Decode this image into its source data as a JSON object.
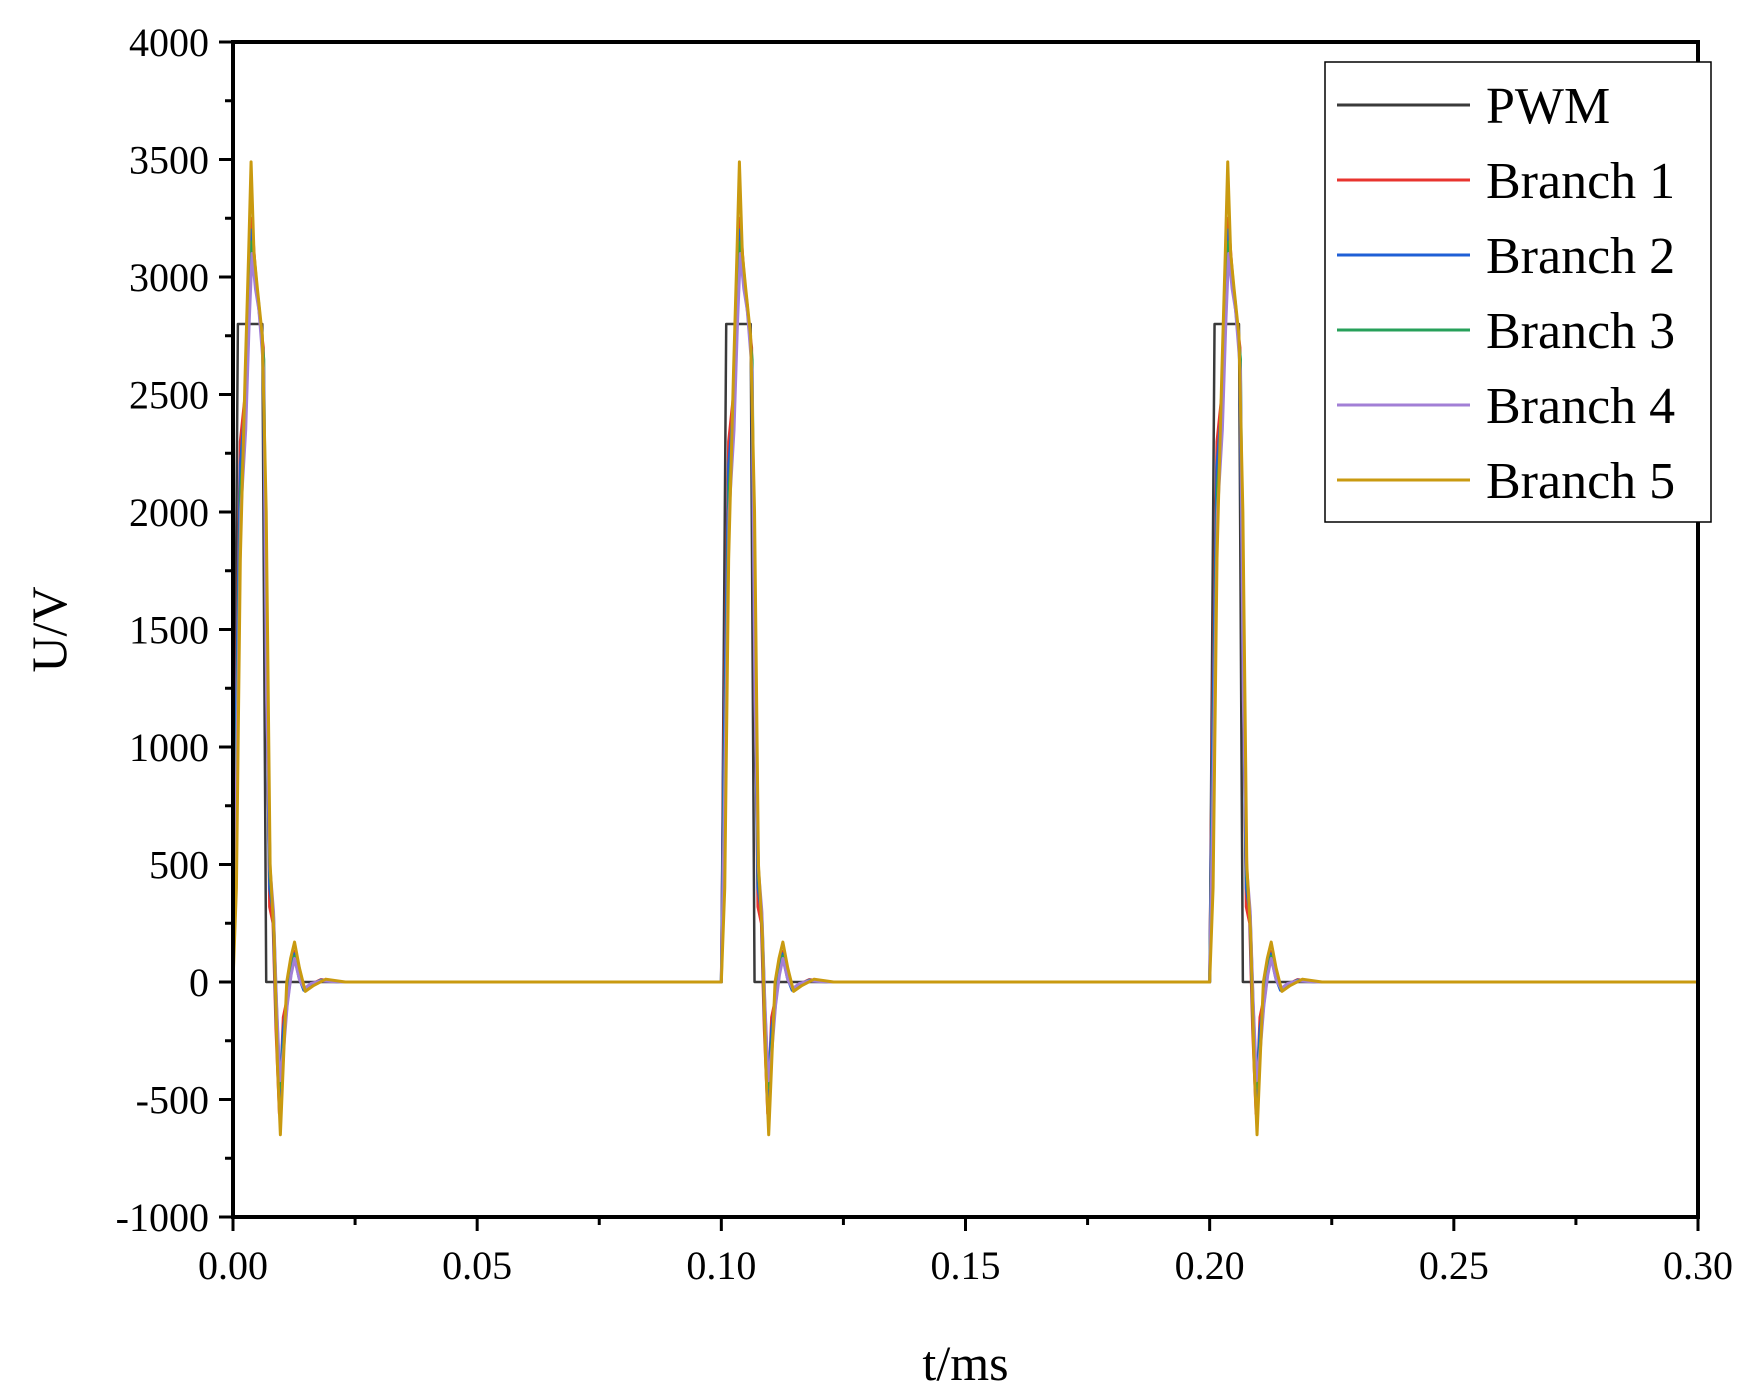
{
  "chart_data": {
    "type": "line",
    "title": "",
    "xlabel": "t/ms",
    "ylabel": "U/V",
    "xlim": [
      0,
      0.3
    ],
    "ylim": [
      -1000,
      4000
    ],
    "xticks": [
      0,
      0.05,
      0.1,
      0.15,
      0.2,
      0.25,
      0.3
    ],
    "xtick_labels": [
      "0.00",
      "0.05",
      "0.10",
      "0.15",
      "0.20",
      "0.25",
      "0.30"
    ],
    "yticks": [
      -1000,
      -500,
      0,
      500,
      1000,
      1500,
      2000,
      2500,
      3000,
      3500,
      4000
    ],
    "ytick_labels": [
      "-1000",
      "-500",
      "0",
      "500",
      "1000",
      "1500",
      "2000",
      "2500",
      "3000",
      "3500",
      "4000"
    ],
    "grid": false,
    "legend_position": "top-right",
    "period": 0.1,
    "num_periods": 3,
    "series": [
      {
        "name": "PWM",
        "color": "#3a3a3a",
        "points": [
          [
            0,
            0
          ],
          [
            0.001,
            2800
          ],
          [
            0.006,
            2800
          ],
          [
            0.0068,
            0
          ],
          [
            0.1,
            0
          ]
        ]
      },
      {
        "name": "Branch 1",
        "color": "#e8342f",
        "points": [
          [
            0,
            0
          ],
          [
            0.0005,
            1000
          ],
          [
            0.0015,
            2300
          ],
          [
            0.0025,
            2500
          ],
          [
            0.0032,
            2900
          ],
          [
            0.0038,
            3250
          ],
          [
            0.0045,
            3050
          ],
          [
            0.0052,
            2880
          ],
          [
            0.0062,
            2700
          ],
          [
            0.0068,
            1500
          ],
          [
            0.0075,
            320
          ],
          [
            0.0082,
            250
          ],
          [
            0.0088,
            -200
          ],
          [
            0.0095,
            -560
          ],
          [
            0.0103,
            -150
          ],
          [
            0.011,
            -80
          ],
          [
            0.0118,
            60
          ],
          [
            0.0125,
            130
          ],
          [
            0.0135,
            30
          ],
          [
            0.0145,
            -30
          ],
          [
            0.016,
            -10
          ],
          [
            0.018,
            10
          ],
          [
            0.022,
            0
          ],
          [
            0.1,
            0
          ]
        ]
      },
      {
        "name": "Branch 2",
        "color": "#1f5fd6",
        "points": [
          [
            0,
            0
          ],
          [
            0.0005,
            900
          ],
          [
            0.0015,
            2200
          ],
          [
            0.0025,
            2450
          ],
          [
            0.0032,
            2850
          ],
          [
            0.0038,
            3200
          ],
          [
            0.0045,
            3000
          ],
          [
            0.0052,
            2900
          ],
          [
            0.0062,
            2650
          ],
          [
            0.0068,
            1400
          ],
          [
            0.0075,
            400
          ],
          [
            0.0082,
            300
          ],
          [
            0.0088,
            -150
          ],
          [
            0.0095,
            -500
          ],
          [
            0.0103,
            -200
          ],
          [
            0.011,
            -100
          ],
          [
            0.0118,
            50
          ],
          [
            0.0125,
            120
          ],
          [
            0.0135,
            20
          ],
          [
            0.0145,
            -35
          ],
          [
            0.016,
            -10
          ],
          [
            0.018,
            8
          ],
          [
            0.022,
            0
          ],
          [
            0.1,
            0
          ]
        ]
      },
      {
        "name": "Branch 3",
        "color": "#27a05a",
        "points": [
          [
            0,
            0
          ],
          [
            0.0006,
            800
          ],
          [
            0.0016,
            2100
          ],
          [
            0.0026,
            2400
          ],
          [
            0.0033,
            2850
          ],
          [
            0.0039,
            3150
          ],
          [
            0.0046,
            3000
          ],
          [
            0.0053,
            2880
          ],
          [
            0.0063,
            2650
          ],
          [
            0.0069,
            1300
          ],
          [
            0.0076,
            450
          ],
          [
            0.0083,
            280
          ],
          [
            0.0089,
            -100
          ],
          [
            0.0096,
            -450
          ],
          [
            0.0104,
            -250
          ],
          [
            0.0111,
            -90
          ],
          [
            0.0119,
            40
          ],
          [
            0.0126,
            110
          ],
          [
            0.0136,
            15
          ],
          [
            0.0146,
            -30
          ],
          [
            0.016,
            -8
          ],
          [
            0.018,
            6
          ],
          [
            0.022,
            0
          ],
          [
            0.1,
            0
          ]
        ]
      },
      {
        "name": "Branch 4",
        "color": "#a27fd6",
        "points": [
          [
            0,
            0
          ],
          [
            0.0006,
            700
          ],
          [
            0.0016,
            2000
          ],
          [
            0.0026,
            2350
          ],
          [
            0.0033,
            2800
          ],
          [
            0.0039,
            3100
          ],
          [
            0.0046,
            2950
          ],
          [
            0.0053,
            2860
          ],
          [
            0.0063,
            2600
          ],
          [
            0.0069,
            1200
          ],
          [
            0.0076,
            480
          ],
          [
            0.0083,
            300
          ],
          [
            0.0089,
            -80
          ],
          [
            0.0096,
            -420
          ],
          [
            0.0104,
            -280
          ],
          [
            0.0111,
            -100
          ],
          [
            0.0119,
            30
          ],
          [
            0.0126,
            100
          ],
          [
            0.0136,
            10
          ],
          [
            0.0146,
            -28
          ],
          [
            0.016,
            -6
          ],
          [
            0.018,
            5
          ],
          [
            0.022,
            0
          ],
          [
            0.1,
            0
          ]
        ]
      },
      {
        "name": "Branch 5",
        "color": "#c99a10",
        "points": [
          [
            0,
            0
          ],
          [
            0.0007,
            400
          ],
          [
            0.0015,
            1800
          ],
          [
            0.0025,
            2600
          ],
          [
            0.0032,
            3100
          ],
          [
            0.0037,
            3490
          ],
          [
            0.0043,
            3100
          ],
          [
            0.005,
            2950
          ],
          [
            0.006,
            2750
          ],
          [
            0.0068,
            2000
          ],
          [
            0.0076,
            500
          ],
          [
            0.0084,
            200
          ],
          [
            0.0091,
            -350
          ],
          [
            0.0097,
            -650
          ],
          [
            0.0104,
            -300
          ],
          [
            0.011,
            0
          ],
          [
            0.0118,
            100
          ],
          [
            0.0126,
            170
          ],
          [
            0.0136,
            60
          ],
          [
            0.0148,
            -40
          ],
          [
            0.0165,
            -15
          ],
          [
            0.019,
            12
          ],
          [
            0.023,
            0
          ],
          [
            0.1,
            0
          ]
        ]
      }
    ]
  }
}
